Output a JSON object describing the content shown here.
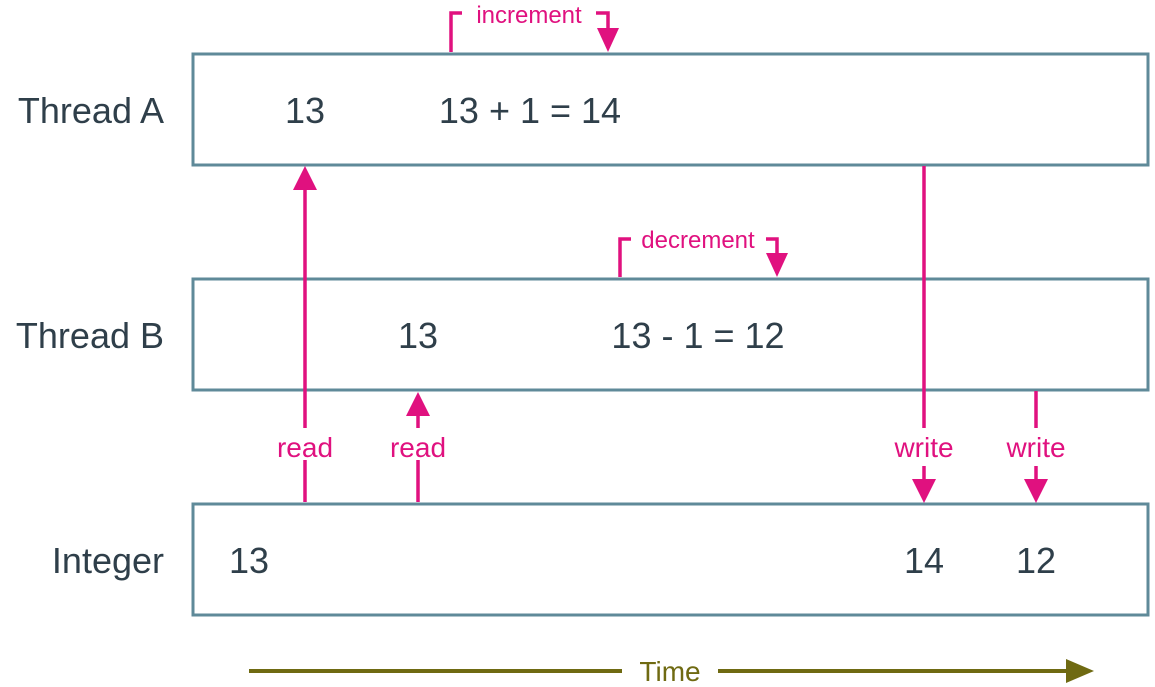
{
  "rows": {
    "thread_a": "Thread A",
    "thread_b": "Thread B",
    "integer": "Integer"
  },
  "thread_a": {
    "read_value": "13",
    "operation": "13 + 1 = 14",
    "bracket_label": "increment"
  },
  "thread_b": {
    "read_value": "13",
    "operation": "13 - 1 = 12",
    "bracket_label": "decrement"
  },
  "integer": {
    "initial": "13",
    "after_a_write": "14",
    "after_b_write": "12"
  },
  "arrows": {
    "read_a": "read",
    "read_b": "read",
    "write_a": "write",
    "write_b": "write"
  },
  "time_axis": {
    "label": "Time"
  },
  "colors": {
    "box_border": "#5f8a99",
    "text": "#2f3f4a",
    "accent": "#e0117f",
    "time": "#6f6a12"
  }
}
